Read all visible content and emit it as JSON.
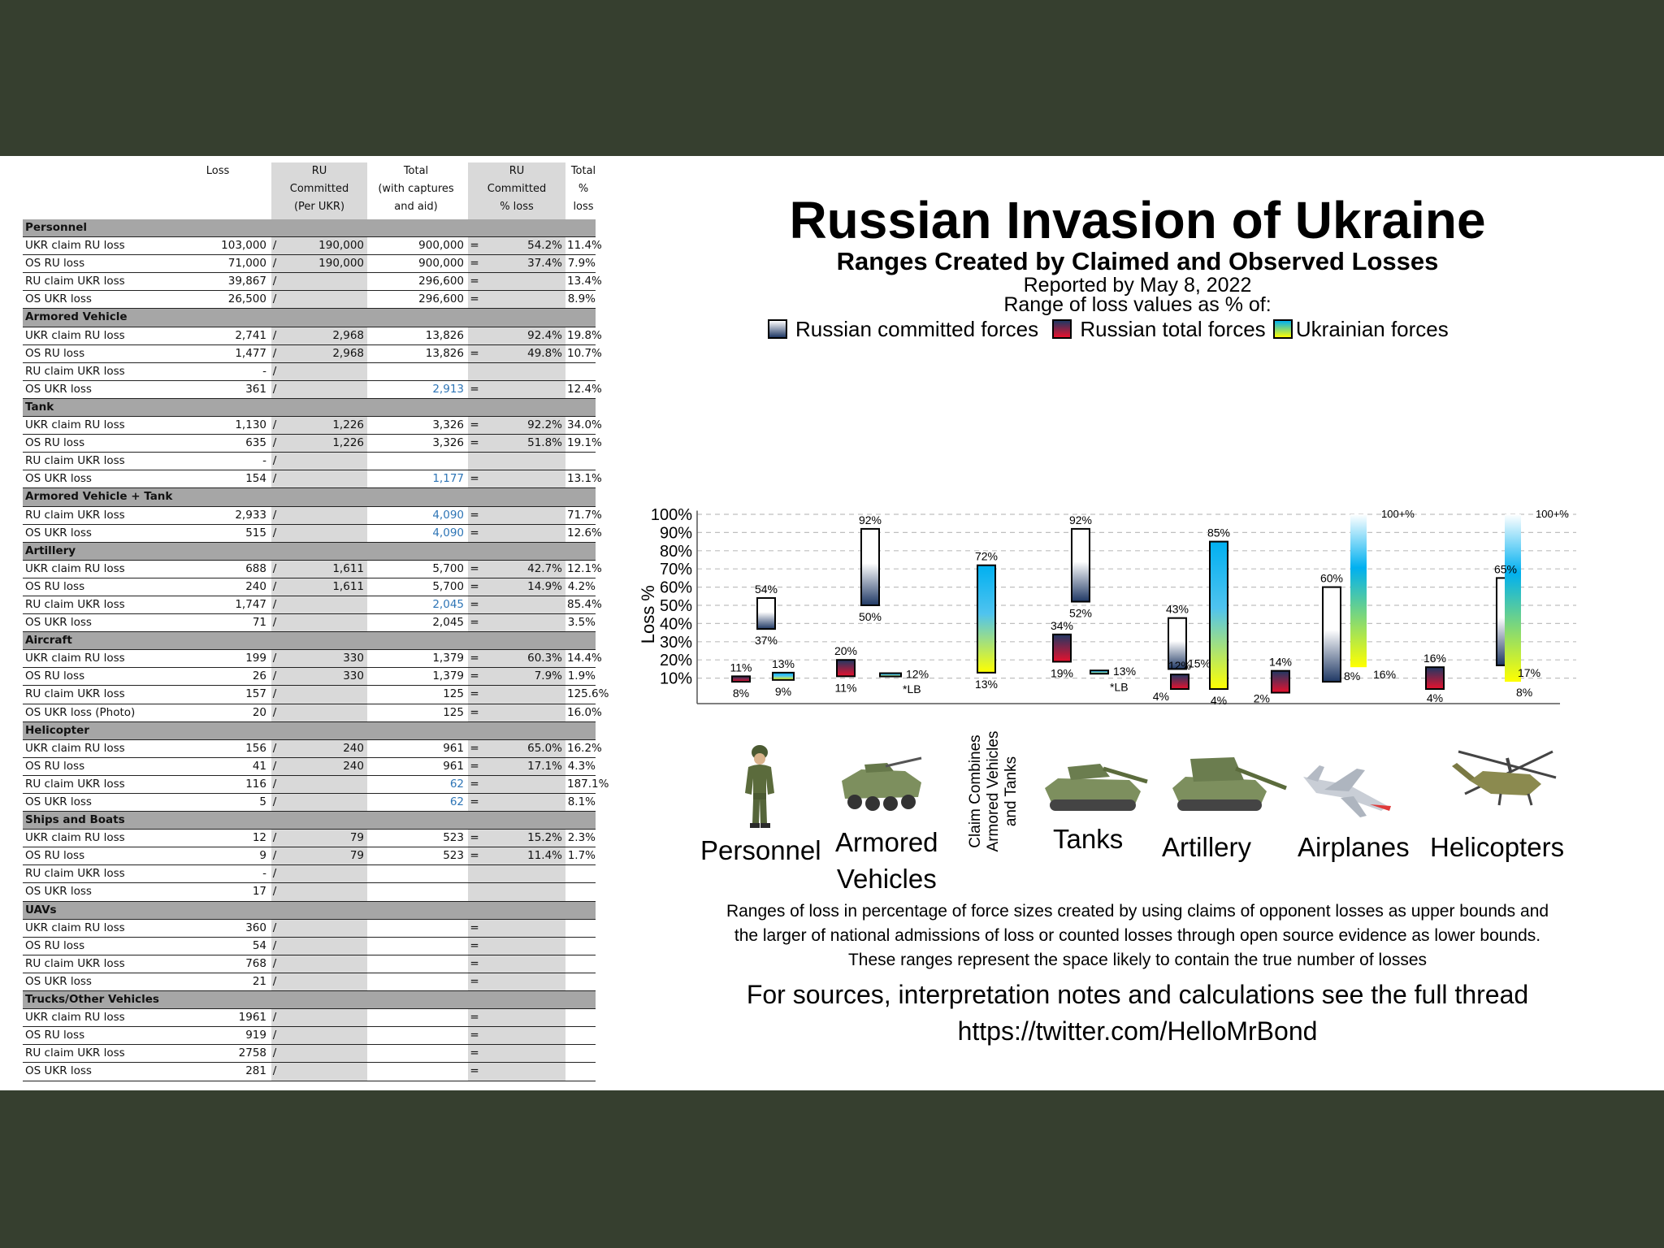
{
  "table": {
    "headers": {
      "loss": "Loss",
      "ru_committed": [
        "RU",
        "Committed",
        "(Per UKR)"
      ],
      "total": [
        "Total",
        "(with captures",
        "and aid)"
      ],
      "ru_pct": [
        "RU",
        "Committed",
        "% loss"
      ],
      "total_pct": [
        "Total",
        "% loss"
      ]
    },
    "sections": [
      {
        "name": "Personnel",
        "rows": [
          {
            "label": "UKR claim RU loss",
            "loss": "103,000",
            "sep": "/",
            "committed": "190,000",
            "total": "900,000",
            "eq": "=",
            "pct": "54.2%",
            "tpct": "11.4%"
          },
          {
            "label": "OS RU loss",
            "loss": "71,000",
            "sep": "/",
            "committed": "190,000",
            "total": "900,000",
            "eq": "=",
            "pct": "37.4%",
            "tpct": "7.9%"
          },
          {
            "label": "RU claim UKR loss",
            "loss": "39,867",
            "sep": "/",
            "committed": "",
            "total": "296,600",
            "eq": "=",
            "pct": "",
            "tpct": "13.4%"
          },
          {
            "label": "OS UKR loss",
            "loss": "26,500",
            "sep": "/",
            "committed": "",
            "total": "296,600",
            "eq": "=",
            "pct": "",
            "tpct": "8.9%"
          }
        ]
      },
      {
        "name": "Armored Vehicle",
        "rows": [
          {
            "label": "UKR claim RU loss",
            "loss": "2,741",
            "sep": "/",
            "committed": "2,968",
            "total": "13,826",
            "eq": "",
            "pct": "92.4%",
            "tpct": "19.8%"
          },
          {
            "label": "OS RU loss",
            "loss": "1,477",
            "sep": "/",
            "committed": "2,968",
            "total": "13,826",
            "eq": "=",
            "pct": "49.8%",
            "tpct": "10.7%"
          },
          {
            "label": "RU claim UKR loss",
            "loss": "-",
            "sep": "/",
            "committed": "",
            "total": "",
            "eq": "",
            "pct": "",
            "tpct": ""
          },
          {
            "label": "OS UKR loss",
            "loss": "361",
            "sep": "/",
            "committed": "",
            "total": "2,913",
            "blue": true,
            "eq": "=",
            "pct": "",
            "tpct": "12.4%"
          }
        ]
      },
      {
        "name": "Tank",
        "rows": [
          {
            "label": "UKR claim RU loss",
            "loss": "1,130",
            "sep": "/",
            "committed": "1,226",
            "total": "3,326",
            "eq": "=",
            "pct": "92.2%",
            "tpct": "34.0%"
          },
          {
            "label": "OS RU loss",
            "loss": "635",
            "sep": "/",
            "committed": "1,226",
            "total": "3,326",
            "eq": "=",
            "pct": "51.8%",
            "tpct": "19.1%"
          },
          {
            "label": "RU claim UKR loss",
            "loss": "-",
            "sep": "/",
            "committed": "",
            "total": "",
            "eq": "",
            "pct": "",
            "tpct": ""
          },
          {
            "label": "OS UKR loss",
            "loss": "154",
            "sep": "/",
            "committed": "",
            "total": "1,177",
            "blue": true,
            "eq": "=",
            "pct": "",
            "tpct": "13.1%"
          }
        ]
      },
      {
        "name": "Armored Vehicle + Tank",
        "rows": [
          {
            "label": "RU claim UKR loss",
            "loss": "2,933",
            "sep": "/",
            "committed": "",
            "total": "4,090",
            "blue": true,
            "eq": "=",
            "pct": "",
            "tpct": "71.7%"
          },
          {
            "label": "OS UKR loss",
            "loss": "515",
            "sep": "/",
            "committed": "",
            "total": "4,090",
            "blue": true,
            "eq": "=",
            "pct": "",
            "tpct": "12.6%"
          }
        ]
      },
      {
        "name": "Artillery",
        "rows": [
          {
            "label": "UKR claim RU loss",
            "loss": "688",
            "sep": "/",
            "committed": "1,611",
            "total": "5,700",
            "eq": "=",
            "pct": "42.7%",
            "tpct": "12.1%"
          },
          {
            "label": "OS RU loss",
            "loss": "240",
            "sep": "/",
            "committed": "1,611",
            "total": "5,700",
            "eq": "=",
            "pct": "14.9%",
            "tpct": "4.2%"
          },
          {
            "label": "RU claim UKR loss",
            "loss": "1,747",
            "sep": "/",
            "committed": "",
            "total": "2,045",
            "blue": true,
            "eq": "=",
            "pct": "",
            "tpct": "85.4%"
          },
          {
            "label": "OS UKR loss",
            "loss": "71",
            "sep": "/",
            "committed": "",
            "total": "2,045",
            "eq": "=",
            "pct": "",
            "tpct": "3.5%"
          }
        ]
      },
      {
        "name": "Aircraft",
        "rows": [
          {
            "label": "UKR claim RU loss",
            "loss": "199",
            "sep": "/",
            "committed": "330",
            "total": "1,379",
            "eq": "=",
            "pct": "60.3%",
            "tpct": "14.4%"
          },
          {
            "label": "OS RU loss",
            "loss": "26",
            "sep": "/",
            "committed": "330",
            "total": "1,379",
            "eq": "=",
            "pct": "7.9%",
            "tpct": "1.9%"
          },
          {
            "label": "RU claim UKR loss",
            "loss": "157",
            "sep": "/",
            "committed": "",
            "total": "125",
            "eq": "=",
            "pct": "",
            "tpct": "125.6%"
          },
          {
            "label": "OS UKR loss (Photo)",
            "loss": "20",
            "sep": "/",
            "committed": "",
            "total": "125",
            "eq": "=",
            "pct": "",
            "tpct": "16.0%"
          }
        ]
      },
      {
        "name": "Helicopter",
        "rows": [
          {
            "label": "UKR claim RU loss",
            "loss": "156",
            "sep": "/",
            "committed": "240",
            "total": "961",
            "eq": "=",
            "pct": "65.0%",
            "tpct": "16.2%"
          },
          {
            "label": "OS RU loss",
            "loss": "41",
            "sep": "/",
            "committed": "240",
            "total": "961",
            "eq": "=",
            "pct": "17.1%",
            "tpct": "4.3%"
          },
          {
            "label": "RU claim UKR loss",
            "loss": "116",
            "sep": "/",
            "committed": "",
            "total": "62",
            "blue": true,
            "eq": "=",
            "pct": "",
            "tpct": "187.1%"
          },
          {
            "label": "OS UKR loss",
            "loss": "5",
            "sep": "/",
            "committed": "",
            "total": "62",
            "blue": true,
            "eq": "=",
            "pct": "",
            "tpct": "8.1%"
          }
        ]
      },
      {
        "name": "Ships and Boats",
        "rows": [
          {
            "label": "UKR claim RU loss",
            "loss": "12",
            "sep": "/",
            "committed": "79",
            "total": "523",
            "eq": "=",
            "pct": "15.2%",
            "tpct": "2.3%"
          },
          {
            "label": "OS RU loss",
            "loss": "9",
            "sep": "/",
            "committed": "79",
            "total": "523",
            "eq": "=",
            "pct": "11.4%",
            "tpct": "1.7%"
          },
          {
            "label": "RU claim UKR loss",
            "loss": "-",
            "sep": "/",
            "committed": "",
            "total": "",
            "eq": "",
            "pct": "",
            "tpct": ""
          },
          {
            "label": "OS UKR loss",
            "loss": "17",
            "sep": "/",
            "committed": "",
            "total": "",
            "eq": "",
            "pct": "",
            "tpct": ""
          }
        ]
      },
      {
        "name": "UAVs",
        "rows": [
          {
            "label": "UKR claim RU loss",
            "loss": "360",
            "sep": "/",
            "committed": "",
            "total": "",
            "eq": "=",
            "pct": "",
            "tpct": ""
          },
          {
            "label": "OS RU loss",
            "loss": "54",
            "sep": "/",
            "committed": "",
            "total": "",
            "eq": "=",
            "pct": "",
            "tpct": ""
          },
          {
            "label": "RU claim UKR loss",
            "loss": "768",
            "sep": "/",
            "committed": "",
            "total": "",
            "eq": "=",
            "pct": "",
            "tpct": ""
          },
          {
            "label": "OS UKR loss",
            "loss": "21",
            "sep": "/",
            "committed": "",
            "total": "",
            "eq": "=",
            "pct": "",
            "tpct": ""
          }
        ]
      },
      {
        "name": "Trucks/Other Vehicles",
        "rows": [
          {
            "label": "UKR claim RU loss",
            "loss": "1961",
            "sep": "/",
            "committed": "",
            "total": "",
            "eq": "=",
            "pct": "",
            "tpct": ""
          },
          {
            "label": "OS RU loss",
            "loss": "919",
            "sep": "/",
            "committed": "",
            "total": "",
            "eq": "=",
            "pct": "",
            "tpct": ""
          },
          {
            "label": "RU claim UKR loss",
            "loss": "2758",
            "sep": "/",
            "committed": "",
            "total": "",
            "eq": "=",
            "pct": "",
            "tpct": ""
          },
          {
            "label": "OS UKR loss",
            "loss": "281",
            "sep": "/",
            "committed": "",
            "total": "",
            "eq": "=",
            "pct": "",
            "tpct": ""
          }
        ]
      }
    ]
  },
  "chart_header": {
    "title": "Russian Invasion of Ukraine",
    "subtitle": "Ranges Created by Claimed and Observed Losses",
    "reported": "Reported by May 8, 2022",
    "range_of": "Range of loss values as % of:"
  },
  "legend": [
    {
      "label": "Russian committed forces",
      "icon": "white-navy-swatch"
    },
    {
      "label": "Russian total forces",
      "icon": "red-navy-swatch"
    },
    {
      "label": "Ukrainian forces",
      "icon": "yellow-blue-swatch"
    }
  ],
  "colors": {
    "committed_top": "#ffffff",
    "committed_bottom": "#1f3864",
    "total_top": "#1f3864",
    "total_bottom": "#e8112d",
    "ukr_top": "#00b0f0",
    "ukr_bottom": "#ffff00"
  },
  "chart_data": {
    "type": "range-bar",
    "ylabel": "Loss %",
    "ylim": [
      0,
      100
    ],
    "yticks": [
      "10%",
      "20%",
      "30%",
      "40%",
      "50%",
      "60%",
      "70%",
      "80%",
      "90%",
      "100%"
    ],
    "grid": true,
    "categories": [
      {
        "name": "Personnel",
        "bars": [
          {
            "series": "Russian committed forces",
            "low": 37,
            "high": 54,
            "low_label": "37%",
            "high_label": "54%"
          },
          {
            "series": "Russian total forces",
            "low": 8,
            "high": 11,
            "low_label": "8%",
            "high_label": "11%"
          },
          {
            "series": "Ukrainian forces",
            "low": 9,
            "high": 13,
            "low_label": "9%",
            "high_label": "13%"
          }
        ]
      },
      {
        "name": "Armored Vehicles",
        "bars": [
          {
            "series": "Russian committed forces",
            "low": 50,
            "high": 92,
            "low_label": "50%",
            "high_label": "92%"
          },
          {
            "series": "Russian total forces",
            "low": 11,
            "high": 20,
            "low_label": "11%",
            "high_label": "20%"
          },
          {
            "series": "Ukrainian forces",
            "low": 11.7,
            "high": 12.7,
            "low_label": "*LB",
            "high_label": "12%"
          }
        ]
      },
      {
        "name": "Claim Combines Armored Vehicles and Tanks",
        "bars": [
          {
            "series": "Ukrainian forces",
            "low": 13,
            "high": 72,
            "low_label": "13%",
            "high_label": "72%"
          }
        ]
      },
      {
        "name": "Tanks",
        "bars": [
          {
            "series": "Russian committed forces",
            "low": 52,
            "high": 92,
            "low_label": "52%",
            "high_label": "92%"
          },
          {
            "series": "Russian total forces",
            "low": 19,
            "high": 34,
            "low_label": "19%",
            "high_label": "34%"
          },
          {
            "series": "Ukrainian forces",
            "low": 12.7,
            "high": 14.2,
            "low_label": "*LB",
            "high_label": "13%"
          }
        ]
      },
      {
        "name": "Artillery",
        "bars": [
          {
            "series": "Russian committed forces",
            "low": 15,
            "high": 43,
            "low_label": "15%",
            "high_label": "43%"
          },
          {
            "series": "Russian total forces",
            "low": 4,
            "high": 12,
            "low_label": "4%",
            "high_label": "12%"
          },
          {
            "series": "Ukrainian forces",
            "low": 4,
            "high": 85,
            "low_label": "4%",
            "high_label": "85%"
          }
        ]
      },
      {
        "name": "Airplanes",
        "bars": [
          {
            "series": "Russian total forces",
            "low": 2,
            "high": 14,
            "low_label": "2%",
            "high_label": "14%"
          },
          {
            "series": "Russian committed forces",
            "low": 8,
            "high": 60,
            "low_label": "8%",
            "high_label": "60%"
          },
          {
            "series": "Ukrainian forces",
            "low": 16,
            "high": 100,
            "low_label": "16%",
            "high_label": "100+%",
            "open_top": true
          }
        ]
      },
      {
        "name": "Helicopters",
        "bars": [
          {
            "series": "Russian total forces",
            "low": 4,
            "high": 16,
            "low_label": "4%",
            "high_label": "16%"
          },
          {
            "series": "Russian committed forces",
            "low": 17,
            "high": 65,
            "low_label": "17%",
            "high_label": "65%"
          },
          {
            "series": "Ukrainian forces",
            "low": 8,
            "high": 100,
            "low_label": "8%",
            "high_label": "100+%",
            "open_top": true
          }
        ]
      }
    ]
  },
  "category_labels": {
    "personnel": "Personnel",
    "armored": [
      "Armored",
      "Vehicles"
    ],
    "combined": [
      "Claim Combines",
      "Armored Vehicles",
      "and Tanks"
    ],
    "tanks": "Tanks",
    "artillery": "Artillery",
    "airplanes": "Airplanes",
    "helicopters": "Helicopters"
  },
  "footnote": [
    "Ranges of loss in percentage of force sizes created by using claims of opponent losses as upper bounds and",
    "the larger of national admissions of loss or counted losses through open source evidence as lower bounds.",
    "These ranges represent the space likely to contain the true number of losses"
  ],
  "sources": [
    "For sources, interpretation notes and calculations see the full thread",
    "https://twitter.com/HelloMrBond"
  ]
}
